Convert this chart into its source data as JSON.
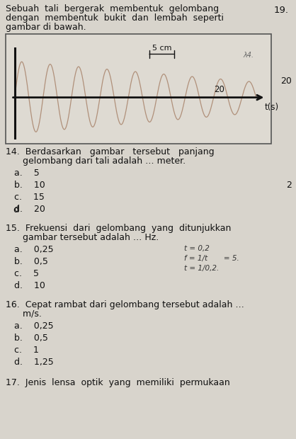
{
  "title_text": "Sebuah  tali  bergerak  membentuk  gelombang\ndengan  membentuk  bukit  dan  lembah  seperti\ngambar di bawah.",
  "number_top_right": "19.",
  "number_right": "20",
  "wave_color": "#b0907a",
  "axis_color": "#111111",
  "background_color": "#d8d4cc",
  "box_bg": "#e8e4dc",
  "text_color": "#111111",
  "q14_line1": "14.  Berdasarkan   gambar   tersebut   panjang",
  "q14_line2": "      gelombang dari tali adalah … meter.",
  "q14_a": "a.    5",
  "q14_b": "b.    10",
  "q14_c": "c.    15",
  "q14_d": "d.    20",
  "q15_line1": "15.  Frekuensi  dari  gelombang  yang  ditunjukkan",
  "q15_line2": "      gambar tersebut adalah … Hz.",
  "q15_a": "a.    0,25",
  "q15_b": "b.    0,5",
  "q15_c": "c.    5",
  "q15_d": "d.    10",
  "q15_note1": "t = 0,2",
  "q15_note2": "f = 1/t      = 5.",
  "q15_note3": "t = 1/0,2.",
  "q16_line1": "16.  Cepat rambat dari gelombang tersebut adalah …",
  "q16_line2": "      m/s.",
  "q16_a": "a.    0,25",
  "q16_b": "b.    0,5",
  "q16_c": "c.    1",
  "q16_d": "d.    1,25",
  "side_2": "2"
}
